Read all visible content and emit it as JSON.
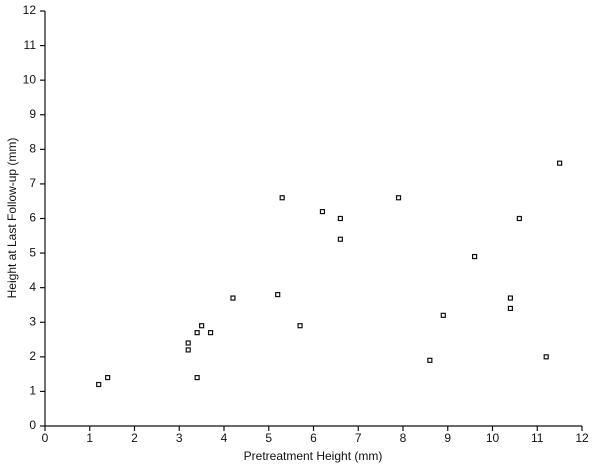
{
  "chart_data": {
    "type": "scatter",
    "x_label": "Pretreatment Height (mm)",
    "y_label": "Height at Last Follow-up (mm)",
    "x": [
      1.2,
      1.4,
      3.2,
      3.2,
      3.4,
      3.5,
      3.7,
      3.4,
      4.2,
      5.2,
      5.3,
      5.7,
      6.2,
      6.6,
      6.6,
      7.9,
      8.6,
      8.9,
      9.6,
      10.4,
      10.4,
      10.6,
      11.2,
      11.5
    ],
    "values": [
      1.2,
      1.4,
      2.4,
      2.2,
      2.7,
      2.9,
      2.7,
      1.4,
      3.7,
      3.8,
      6.6,
      2.9,
      6.2,
      6.0,
      5.4,
      6.6,
      1.9,
      3.2,
      4.9,
      3.7,
      3.4,
      6.0,
      2.0,
      7.6
    ],
    "color": "#111111",
    "xlim": [
      0,
      12
    ],
    "ylim": [
      0,
      12
    ],
    "xticks": [
      0,
      1,
      2,
      3,
      4,
      5,
      6,
      7,
      8,
      9,
      10,
      11,
      12
    ],
    "yticks": [
      0,
      1,
      2,
      3,
      4,
      5,
      6,
      7,
      8,
      9,
      10,
      11,
      12
    ],
    "grid": false
  }
}
